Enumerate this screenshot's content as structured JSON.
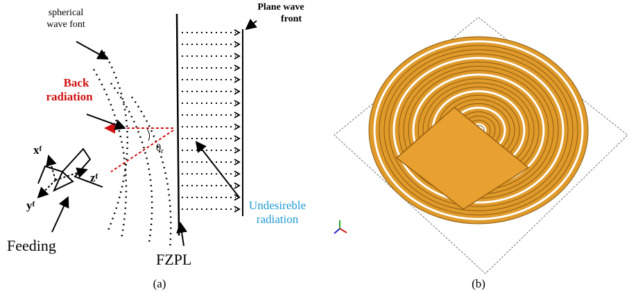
{
  "panel_a": {
    "spherical_label": [
      "spherical",
      "wave font"
    ],
    "plane_label": [
      "Plane wave",
      "front"
    ],
    "back_label": [
      "Back",
      "radiation"
    ],
    "theta": {
      "symbol": "θ",
      "sub": "r"
    },
    "axes": {
      "x": {
        "symbol": "x",
        "sub": "f"
      },
      "y": {
        "symbol": "y",
        "sub": "f"
      },
      "z": {
        "symbol": "z",
        "sub": "f"
      }
    },
    "feeding": "Feeding",
    "fzpl": "FZPL",
    "undesired_label": [
      "Undesireble",
      "radiation"
    ],
    "caption": "(a)"
  },
  "panel_b": {
    "caption": "(b)"
  }
}
